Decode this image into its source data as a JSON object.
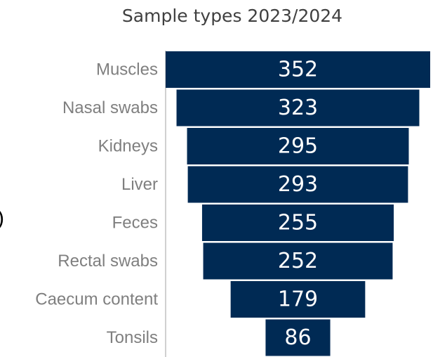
{
  "chart_data": {
    "type": "funnel",
    "title": "Sample types 2023/2024",
    "annotation": ")",
    "categories": [
      "Muscles",
      "Nasal swabs",
      "Kidneys",
      "Liver",
      "Feces",
      "Rectal swabs",
      "Caecum content",
      "Tonsils"
    ],
    "values": [
      352,
      323,
      295,
      293,
      255,
      252,
      179,
      86
    ],
    "color": "#002a54"
  }
}
